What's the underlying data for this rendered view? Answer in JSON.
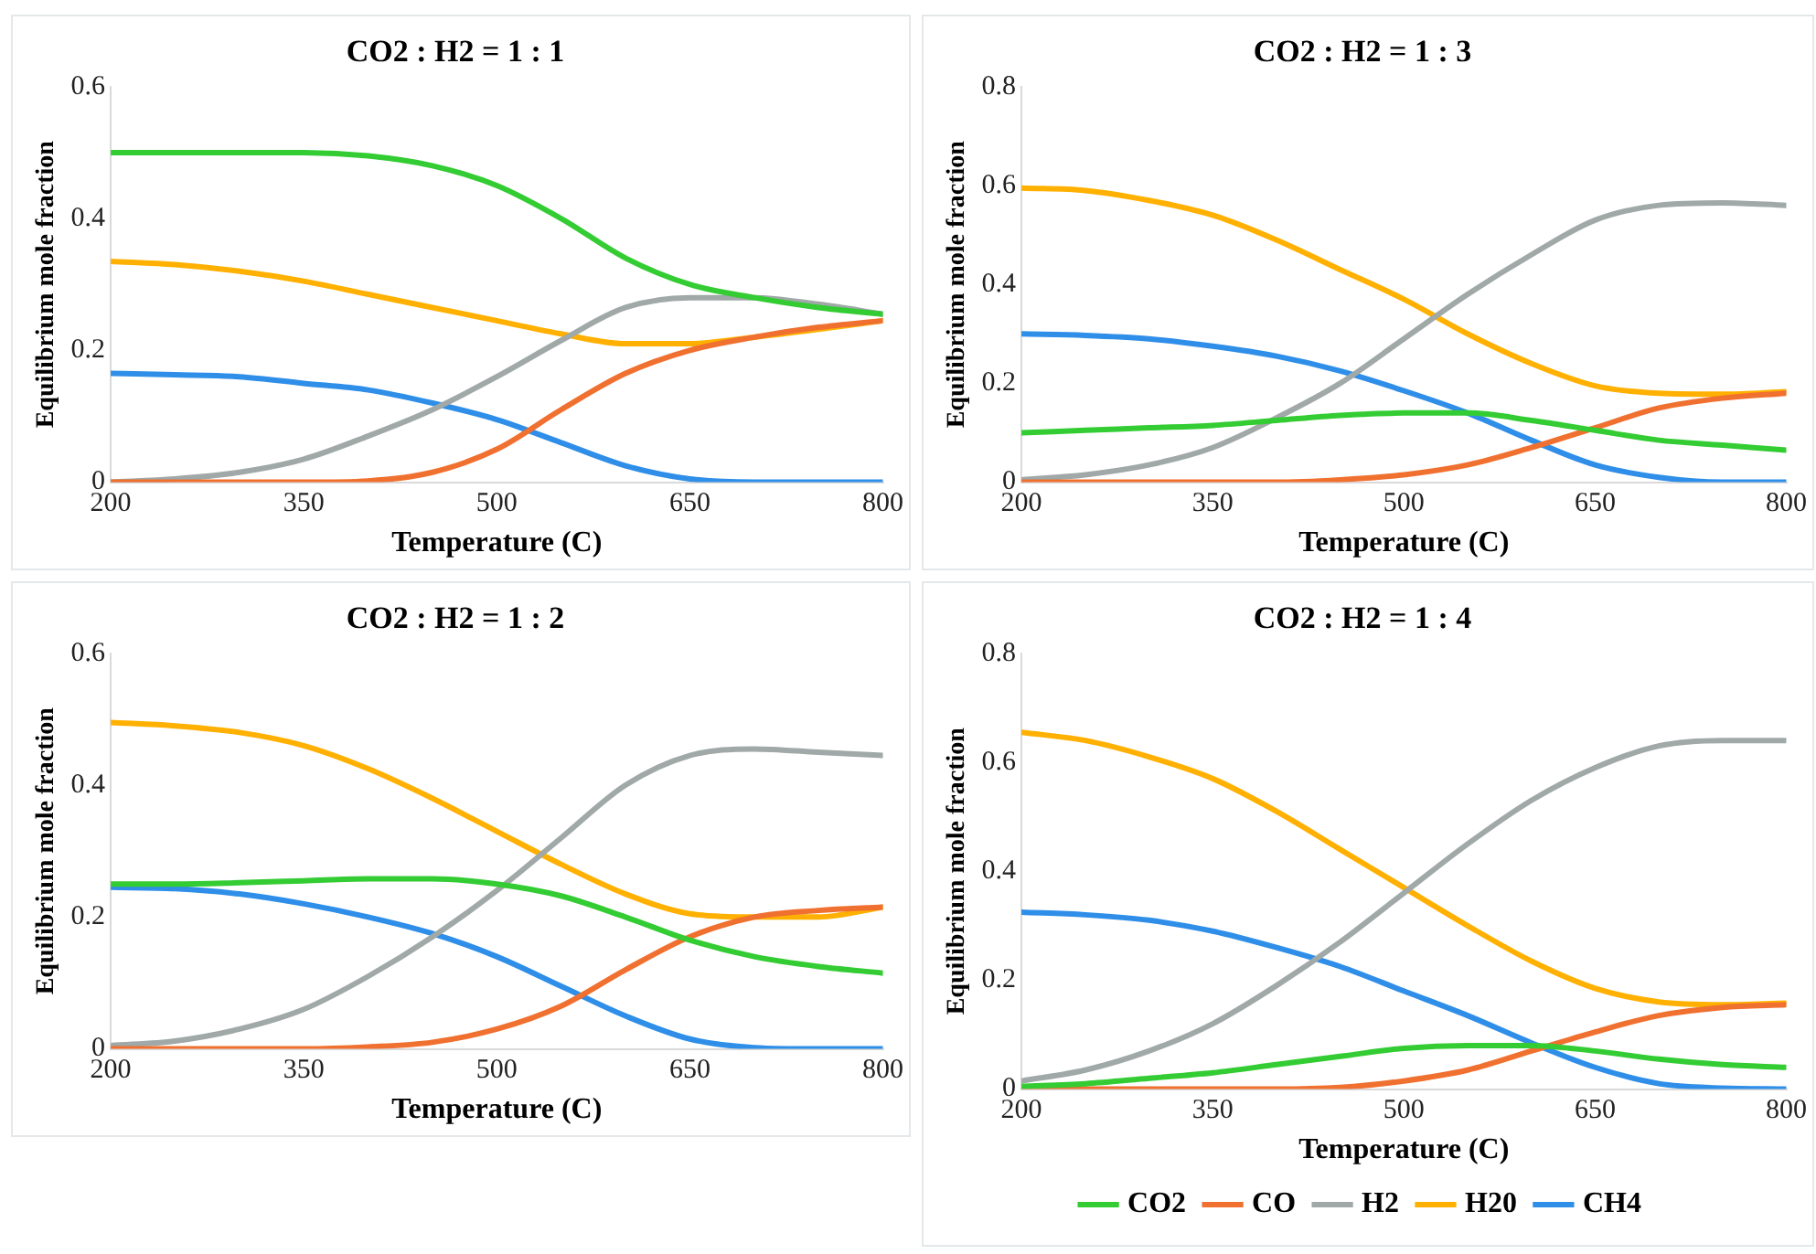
{
  "chart_data": [
    {
      "type": "line",
      "title": "CO2 : H2 = 1 : 1",
      "xlabel": "Temperature (C)",
      "ylabel": "Equilibrium mole fraction",
      "x": [
        200,
        250,
        300,
        350,
        400,
        450,
        500,
        550,
        600,
        650,
        700,
        750,
        800
      ],
      "xlim": [
        200,
        800
      ],
      "xticks": [
        200,
        350,
        500,
        650,
        800
      ],
      "ylim": [
        0,
        0.6
      ],
      "yticks": [
        0,
        0.2,
        0.4,
        0.6
      ],
      "grid": false,
      "legend": false,
      "marker": "none",
      "line_style": "solid",
      "series": [
        {
          "color": "#33cc33",
          "values": [
            0.5,
            0.5,
            0.5,
            0.5,
            0.495,
            0.48,
            0.45,
            0.4,
            0.34,
            0.3,
            0.28,
            0.265,
            0.255
          ]
        },
        {
          "color": "#f07030",
          "values": [
            0,
            0,
            0,
            0,
            0.002,
            0.015,
            0.05,
            0.11,
            0.165,
            0.2,
            0.22,
            0.235,
            0.245
          ]
        },
        {
          "color": "#a0a8a8",
          "values": [
            0,
            0.005,
            0.015,
            0.035,
            0.07,
            0.11,
            0.16,
            0.215,
            0.265,
            0.28,
            0.28,
            0.27,
            0.255
          ]
        },
        {
          "color": "#ffb000",
          "values": [
            0.335,
            0.33,
            0.32,
            0.305,
            0.285,
            0.265,
            0.245,
            0.225,
            0.21,
            0.21,
            0.22,
            0.232,
            0.245
          ]
        },
        {
          "color": "#2e8ee8",
          "values": [
            0.165,
            0.163,
            0.16,
            0.15,
            0.14,
            0.12,
            0.095,
            0.06,
            0.025,
            0.005,
            0,
            0,
            0
          ]
        }
      ]
    },
    {
      "type": "line",
      "title": "CO2 : H2 = 1 : 3",
      "xlabel": "Temperature (C)",
      "ylabel": "Equilibrium mole fraction",
      "x": [
        200,
        250,
        300,
        350,
        400,
        450,
        500,
        550,
        600,
        650,
        700,
        750,
        800
      ],
      "xlim": [
        200,
        800
      ],
      "xticks": [
        200,
        350,
        500,
        650,
        800
      ],
      "ylim": [
        0,
        0.8
      ],
      "yticks": [
        0,
        0.2,
        0.4,
        0.6,
        0.8
      ],
      "grid": false,
      "legend": false,
      "marker": "none",
      "line_style": "solid",
      "series": [
        {
          "color": "#33cc33",
          "values": [
            0.1,
            0.105,
            0.11,
            0.115,
            0.125,
            0.135,
            0.14,
            0.14,
            0.125,
            0.105,
            0.085,
            0.075,
            0.065
          ]
        },
        {
          "color": "#f07030",
          "values": [
            0,
            0,
            0,
            0,
            0,
            0.005,
            0.015,
            0.035,
            0.07,
            0.11,
            0.15,
            0.17,
            0.18
          ]
        },
        {
          "color": "#a0a8a8",
          "values": [
            0.005,
            0.015,
            0.035,
            0.07,
            0.13,
            0.2,
            0.29,
            0.38,
            0.46,
            0.53,
            0.56,
            0.565,
            0.56
          ]
        },
        {
          "color": "#ffb000",
          "values": [
            0.595,
            0.59,
            0.57,
            0.54,
            0.49,
            0.43,
            0.37,
            0.3,
            0.24,
            0.195,
            0.18,
            0.178,
            0.183
          ]
        },
        {
          "color": "#2e8ee8",
          "values": [
            0.3,
            0.297,
            0.29,
            0.275,
            0.255,
            0.225,
            0.185,
            0.14,
            0.085,
            0.035,
            0.01,
            0,
            0
          ]
        }
      ]
    },
    {
      "type": "line",
      "title": "CO2 : H2 = 1 : 2",
      "xlabel": "Temperature (C)",
      "ylabel": "Equilibrium mole fraction",
      "x": [
        200,
        250,
        300,
        350,
        400,
        450,
        500,
        550,
        600,
        650,
        700,
        750,
        800
      ],
      "xlim": [
        200,
        800
      ],
      "xticks": [
        200,
        350,
        500,
        650,
        800
      ],
      "ylim": [
        0,
        0.6
      ],
      "yticks": [
        0,
        0.2,
        0.4,
        0.6
      ],
      "grid": false,
      "legend": false,
      "marker": "none",
      "line_style": "solid",
      "series": [
        {
          "color": "#33cc33",
          "values": [
            0.25,
            0.25,
            0.252,
            0.255,
            0.258,
            0.258,
            0.25,
            0.232,
            0.2,
            0.165,
            0.14,
            0.125,
            0.115
          ]
        },
        {
          "color": "#f07030",
          "values": [
            0,
            0,
            0,
            0,
            0.003,
            0.01,
            0.03,
            0.065,
            0.12,
            0.17,
            0.2,
            0.21,
            0.215
          ]
        },
        {
          "color": "#a0a8a8",
          "values": [
            0.005,
            0.012,
            0.03,
            0.06,
            0.11,
            0.17,
            0.24,
            0.32,
            0.4,
            0.445,
            0.455,
            0.45,
            0.445
          ]
        },
        {
          "color": "#ffb000",
          "values": [
            0.495,
            0.49,
            0.48,
            0.46,
            0.425,
            0.38,
            0.33,
            0.28,
            0.235,
            0.205,
            0.2,
            0.2,
            0.215
          ]
        },
        {
          "color": "#2e8ee8",
          "values": [
            0.245,
            0.243,
            0.235,
            0.22,
            0.2,
            0.175,
            0.14,
            0.095,
            0.05,
            0.015,
            0.002,
            0,
            0
          ]
        }
      ]
    },
    {
      "type": "line",
      "title": "CO2 : H2 = 1 : 4",
      "xlabel": "Temperature (C)",
      "ylabel": "Equilibrium mole fraction",
      "x": [
        200,
        250,
        300,
        350,
        400,
        450,
        500,
        550,
        600,
        650,
        700,
        750,
        800
      ],
      "xlim": [
        200,
        800
      ],
      "xticks": [
        200,
        350,
        500,
        650,
        800
      ],
      "ylim": [
        0,
        0.8
      ],
      "yticks": [
        0,
        0.2,
        0.4,
        0.6,
        0.8
      ],
      "grid": false,
      "legend": "bottom",
      "marker": "none",
      "line_style": "solid",
      "series": [
        {
          "name": "CO2",
          "color": "#33cc33",
          "values": [
            0.005,
            0.01,
            0.02,
            0.03,
            0.045,
            0.06,
            0.075,
            0.08,
            0.08,
            0.07,
            0.055,
            0.045,
            0.04
          ]
        },
        {
          "name": "CO",
          "color": "#f07030",
          "values": [
            0,
            0,
            0,
            0,
            0,
            0.003,
            0.015,
            0.035,
            0.07,
            0.105,
            0.135,
            0.15,
            0.155
          ]
        },
        {
          "name": "H2",
          "color": "#a0a8a8",
          "values": [
            0.015,
            0.035,
            0.07,
            0.12,
            0.19,
            0.27,
            0.36,
            0.45,
            0.53,
            0.59,
            0.63,
            0.64,
            0.64
          ]
        },
        {
          "name": "H20",
          "color": "#ffb000",
          "values": [
            0.655,
            0.64,
            0.61,
            0.57,
            0.51,
            0.44,
            0.37,
            0.3,
            0.235,
            0.185,
            0.16,
            0.155,
            0.158
          ]
        },
        {
          "name": "CH4",
          "color": "#2e8ee8",
          "values": [
            0.325,
            0.32,
            0.31,
            0.29,
            0.26,
            0.225,
            0.18,
            0.135,
            0.085,
            0.04,
            0.01,
            0.002,
            0
          ]
        }
      ]
    }
  ]
}
